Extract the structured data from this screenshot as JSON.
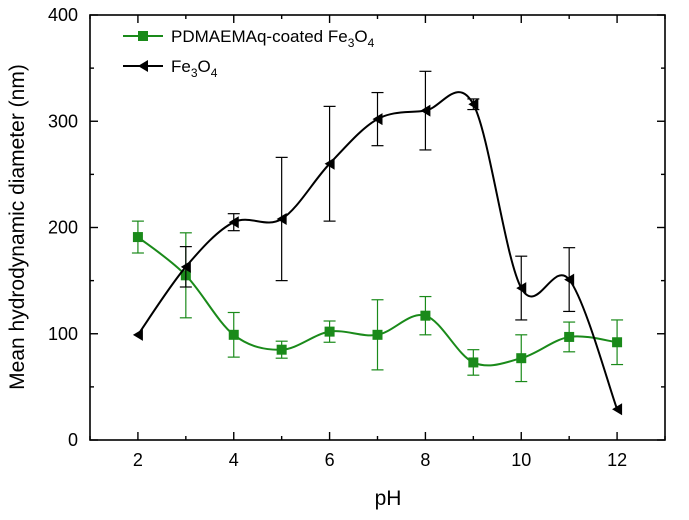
{
  "chart_data": {
    "type": "line",
    "xlabel": "pH",
    "ylabel": "Mean hydrodynamic diameter (nm)",
    "xlim": [
      1,
      13
    ],
    "ylim": [
      0,
      400
    ],
    "xticks": [
      2,
      4,
      6,
      8,
      10,
      12
    ],
    "yticks": [
      0,
      100,
      200,
      300,
      400
    ],
    "legend_position": "top-left",
    "series": [
      {
        "name": "PDMAEMAq-coated Fe3O4",
        "legend_parts": [
          "PDMAEMAq-coated Fe",
          "3",
          "O",
          "4"
        ],
        "color": "#1a8a1a",
        "marker": "square",
        "points": [
          {
            "x": 2,
            "y": 191,
            "err": 15
          },
          {
            "x": 3,
            "y": 155,
            "err": 40
          },
          {
            "x": 4,
            "y": 99,
            "err": 21
          },
          {
            "x": 5,
            "y": 85,
            "err": 8
          },
          {
            "x": 6,
            "y": 102,
            "err": 10
          },
          {
            "x": 7,
            "y": 99,
            "err": 33
          },
          {
            "x": 8,
            "y": 117,
            "err": 18
          },
          {
            "x": 9,
            "y": 73,
            "err": 12
          },
          {
            "x": 10,
            "y": 77,
            "err": 22
          },
          {
            "x": 11,
            "y": 97,
            "err": 14
          },
          {
            "x": 12,
            "y": 92,
            "err": 21
          }
        ]
      },
      {
        "name": "Fe3O4",
        "legend_parts": [
          "Fe",
          "3",
          "O",
          "4"
        ],
        "color": "#000000",
        "marker": "triangle-left",
        "points": [
          {
            "x": 2,
            "y": 99,
            "err": 0
          },
          {
            "x": 3,
            "y": 163,
            "err": 19
          },
          {
            "x": 4,
            "y": 205,
            "err": 8
          },
          {
            "x": 5,
            "y": 208,
            "err": 58
          },
          {
            "x": 6,
            "y": 260,
            "err": 54
          },
          {
            "x": 7,
            "y": 302,
            "err": 25
          },
          {
            "x": 8,
            "y": 310,
            "err": 37
          },
          {
            "x": 9,
            "y": 316,
            "err": 5
          },
          {
            "x": 10,
            "y": 143,
            "err": 30
          },
          {
            "x": 11,
            "y": 151,
            "err": 30
          },
          {
            "x": 12,
            "y": 29,
            "err": 0
          }
        ]
      }
    ]
  }
}
